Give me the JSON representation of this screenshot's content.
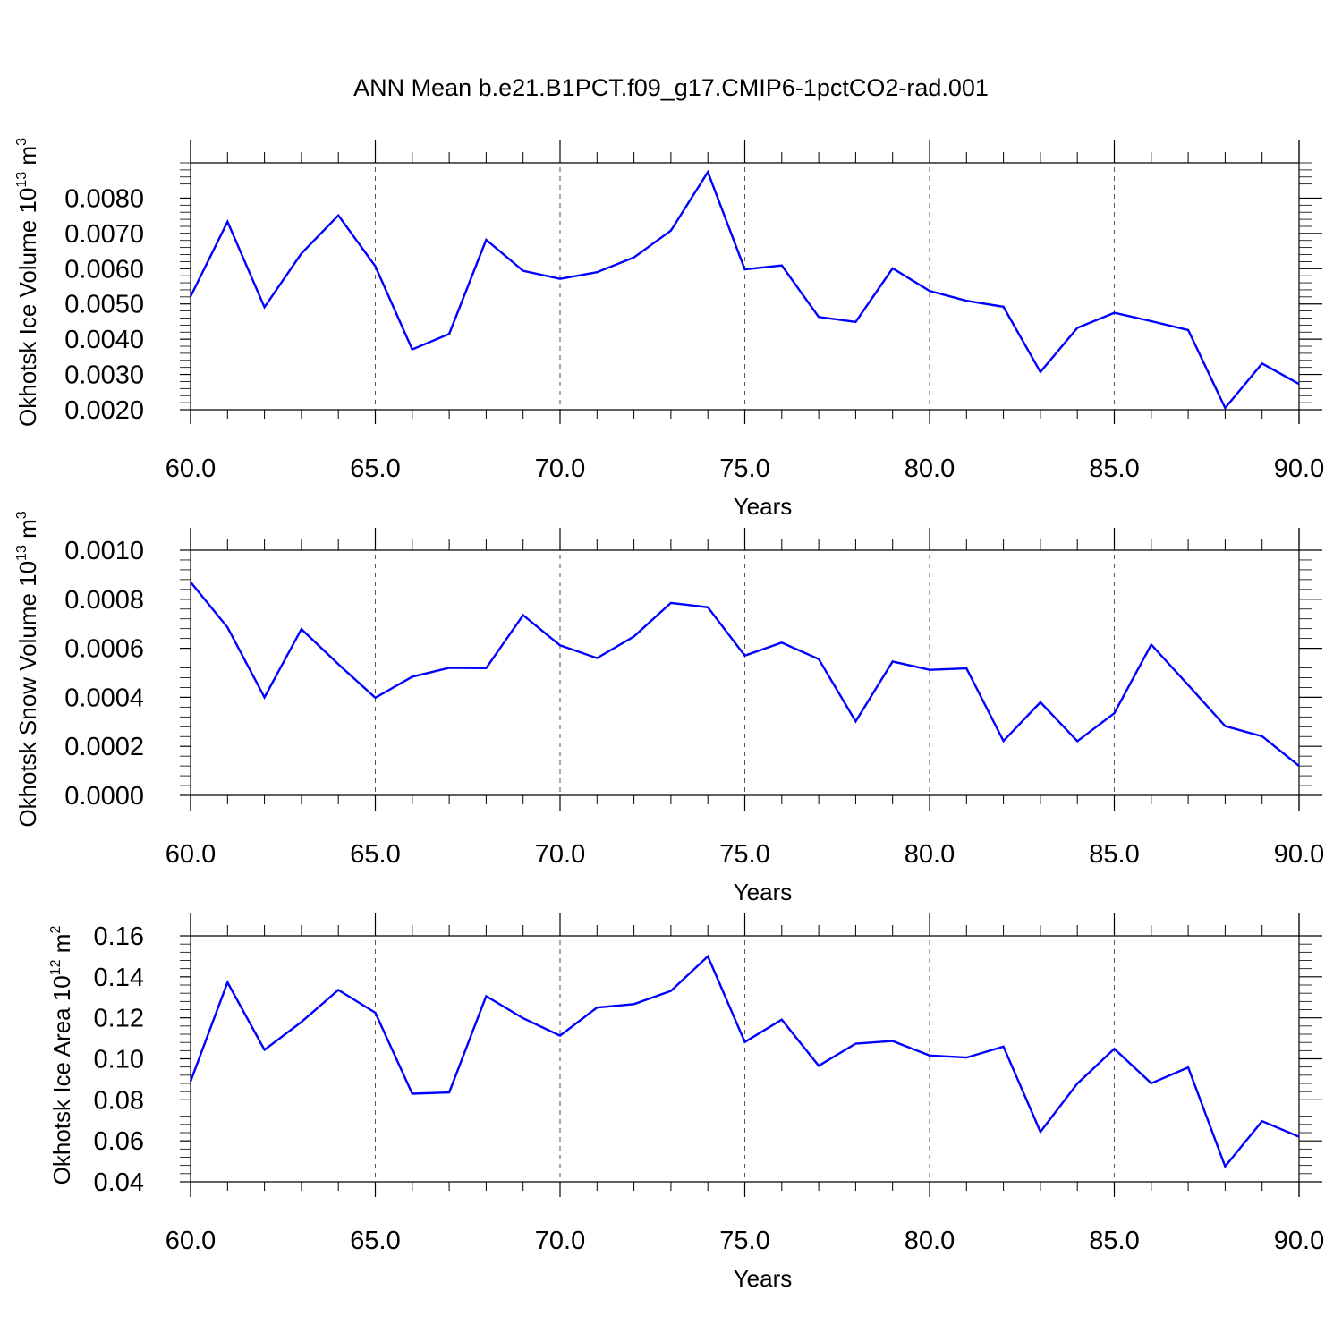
{
  "title": "ANN Mean b.e21.B1PCT.f09_g17.CMIP6-1pctCO2-rad.001",
  "colors": {
    "series": "#0000ff",
    "axis": "#000000",
    "grid": "#555555"
  },
  "chart_data": [
    {
      "type": "line",
      "ylabel": {
        "main": "Okhotsk Ice Volume 10",
        "exp": "13",
        "unit": " m",
        "unit_exp": "3"
      },
      "xlabel": "Years",
      "xlim": [
        60,
        90
      ],
      "ylim": [
        0.002,
        0.009
      ],
      "x_ticks": [
        "60.0",
        "65.0",
        "70.0",
        "75.0",
        "80.0",
        "85.0",
        "90.0"
      ],
      "y_ticks": [
        {
          "v": 0.002,
          "label": "0.0020"
        },
        {
          "v": 0.003,
          "label": "0.0030"
        },
        {
          "v": 0.004,
          "label": "0.0040"
        },
        {
          "v": 0.005,
          "label": "0.0050"
        },
        {
          "v": 0.006,
          "label": "0.0060"
        },
        {
          "v": 0.007,
          "label": "0.0070"
        },
        {
          "v": 0.008,
          "label": "0.0080"
        }
      ],
      "grid": "vertical dashed",
      "series": [
        {
          "x": [
            60,
            61,
            62,
            63,
            64,
            65,
            66,
            67,
            68,
            69,
            70,
            71,
            72,
            73,
            74,
            75,
            76,
            77,
            78,
            79,
            80,
            81,
            82,
            83,
            84,
            85,
            86,
            87,
            88,
            89,
            90
          ],
          "values": [
            0.00521,
            0.00733,
            0.00491,
            0.00643,
            0.00751,
            0.00607,
            0.00371,
            0.00415,
            0.00682,
            0.00594,
            0.00571,
            0.0059,
            0.00632,
            0.00708,
            0.00874,
            0.00598,
            0.00609,
            0.00463,
            0.00449,
            0.00601,
            0.00537,
            0.00509,
            0.00492,
            0.00307,
            0.00432,
            0.00475,
            0.00451,
            0.00426,
            0.00205,
            0.00331,
            0.00273
          ]
        }
      ]
    },
    {
      "type": "line",
      "ylabel": {
        "main": "Okhotsk Snow Volume 10",
        "exp": "13",
        "unit": " m",
        "unit_exp": "3"
      },
      "xlabel": "Years",
      "xlim": [
        60,
        90
      ],
      "ylim": [
        0.0,
        0.001
      ],
      "x_ticks": [
        "60.0",
        "65.0",
        "70.0",
        "75.0",
        "80.0",
        "85.0",
        "90.0"
      ],
      "y_ticks": [
        {
          "v": 0.0,
          "label": "0.0000"
        },
        {
          "v": 0.0002,
          "label": "0.0002"
        },
        {
          "v": 0.0004,
          "label": "0.0004"
        },
        {
          "v": 0.0006,
          "label": "0.0006"
        },
        {
          "v": 0.0008,
          "label": "0.0008"
        },
        {
          "v": 0.001,
          "label": "0.0010"
        }
      ],
      "grid": "vertical dashed",
      "series": [
        {
          "x": [
            60,
            61,
            62,
            63,
            64,
            65,
            66,
            67,
            68,
            69,
            70,
            71,
            72,
            73,
            74,
            75,
            76,
            77,
            78,
            79,
            80,
            81,
            82,
            83,
            84,
            85,
            86,
            87,
            88,
            89,
            90
          ],
          "values": [
            0.00087,
            0.000685,
            0.0004,
            0.000678,
            0.000535,
            0.000398,
            0.000484,
            0.00052,
            0.000519,
            0.000735,
            0.000612,
            0.00056,
            0.000648,
            0.000785,
            0.000767,
            0.00057,
            0.000623,
            0.000556,
            0.000302,
            0.000546,
            0.000512,
            0.000518,
            0.000222,
            0.00038,
            0.000221,
            0.000335,
            0.000615,
            0.00045,
            0.000283,
            0.000241,
            0.00012
          ]
        }
      ]
    },
    {
      "type": "line",
      "ylabel": {
        "main": "Okhotsk Ice Area 10",
        "exp": "12",
        "unit": " m",
        "unit_exp": "2"
      },
      "xlabel": "Years",
      "xlim": [
        60,
        90
      ],
      "ylim": [
        0.04,
        0.16
      ],
      "x_ticks": [
        "60.0",
        "65.0",
        "70.0",
        "75.0",
        "80.0",
        "85.0",
        "90.0"
      ],
      "y_ticks": [
        {
          "v": 0.04,
          "label": "0.04"
        },
        {
          "v": 0.06,
          "label": "0.06"
        },
        {
          "v": 0.08,
          "label": "0.08"
        },
        {
          "v": 0.1,
          "label": "0.10"
        },
        {
          "v": 0.12,
          "label": "0.12"
        },
        {
          "v": 0.14,
          "label": "0.14"
        },
        {
          "v": 0.16,
          "label": "0.16"
        }
      ],
      "grid": "vertical dashed",
      "series": [
        {
          "x": [
            60,
            61,
            62,
            63,
            64,
            65,
            66,
            67,
            68,
            69,
            70,
            71,
            72,
            73,
            74,
            75,
            76,
            77,
            78,
            79,
            80,
            81,
            82,
            83,
            84,
            85,
            86,
            87,
            88,
            89,
            90
          ],
          "values": [
            0.089,
            0.1373,
            0.1044,
            0.118,
            0.1336,
            0.1225,
            0.083,
            0.0836,
            0.1306,
            0.1198,
            0.1113,
            0.125,
            0.1267,
            0.1331,
            0.15,
            0.1082,
            0.1191,
            0.0966,
            0.1074,
            0.1087,
            0.1016,
            0.1006,
            0.106,
            0.0644,
            0.0879,
            0.1049,
            0.0881,
            0.0958,
            0.0475,
            0.0696,
            0.062
          ]
        }
      ]
    }
  ]
}
